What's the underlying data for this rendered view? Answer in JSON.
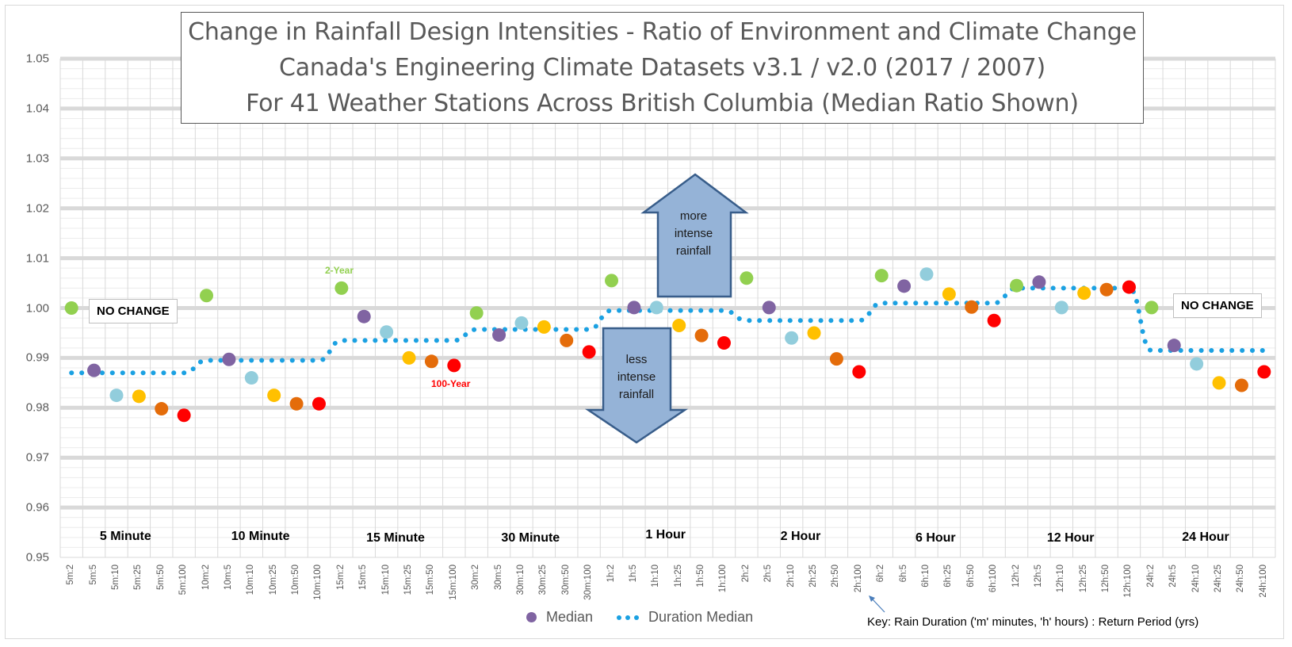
{
  "chart_data": {
    "type": "scatter",
    "title": [
      "Change in Rainfall Design Intensities - Ratio of Environment and Climate Change",
      "Canada's Engineering Climate Datasets v3.1 / v2.0 (2017 / 2007)",
      "For 41 Weather Stations Across British Columbia (Median Ratio Shown)"
    ],
    "xlabel": "",
    "ylabel": "",
    "ylim": [
      0.95,
      1.05
    ],
    "yticks": [
      "1.05",
      "1.04",
      "1.03",
      "1.02",
      "1.01",
      "1.00",
      "0.99",
      "0.98",
      "0.97",
      "0.96",
      "0.95"
    ],
    "ytick_values": [
      1.05,
      1.04,
      1.03,
      1.02,
      1.01,
      1.0,
      0.99,
      0.98,
      0.97,
      0.96,
      0.95
    ],
    "grid": true,
    "return_periods": [
      "2",
      "5",
      "10",
      "25",
      "50",
      "100"
    ],
    "return_period_colors": {
      "2": "#92d050",
      "5": "#8064a2",
      "10": "#92cddc",
      "25": "#ffc000",
      "50": "#e46c0a",
      "100": "#ff0000"
    },
    "durations": [
      {
        "code": "5m",
        "label": "5 Minute",
        "duration_median": 0.987,
        "values": [
          1.0,
          0.9875,
          0.9825,
          0.9823,
          0.9798,
          0.9785
        ]
      },
      {
        "code": "10m",
        "label": "10 Minute",
        "duration_median": 0.9895,
        "values": [
          1.0025,
          0.9897,
          0.986,
          0.9825,
          0.9808,
          0.9808
        ]
      },
      {
        "code": "15m",
        "label": "15 Minute",
        "duration_median": 0.9935,
        "values": [
          1.004,
          0.9983,
          0.9952,
          0.99,
          0.9893,
          0.9885
        ]
      },
      {
        "code": "30m",
        "label": "30 Minute",
        "duration_median": 0.9957,
        "values": [
          0.999,
          0.9946,
          0.997,
          0.9962,
          0.9935,
          0.9912
        ]
      },
      {
        "code": "1h",
        "label": "1 Hour",
        "duration_median": 0.9995,
        "values": [
          1.0055,
          1.0001,
          1.0001,
          0.9965,
          0.9945,
          0.993
        ]
      },
      {
        "code": "2h",
        "label": "2 Hour",
        "duration_median": 0.9975,
        "values": [
          1.006,
          1.0001,
          0.994,
          0.995,
          0.9898,
          0.9872
        ]
      },
      {
        "code": "6h",
        "label": "6 Hour",
        "duration_median": 1.001,
        "values": [
          1.0065,
          1.0044,
          1.0068,
          1.0028,
          1.0002,
          0.9975
        ]
      },
      {
        "code": "12h",
        "label": "12 Hour",
        "duration_median": 1.004,
        "values": [
          1.0045,
          1.0052,
          1.0001,
          1.003,
          1.0037,
          1.0042
        ]
      },
      {
        "code": "24h",
        "label": "24 Hour",
        "duration_median": 0.9915,
        "values": [
          1.0001,
          0.9925,
          0.9888,
          0.985,
          0.9845,
          0.9872
        ]
      }
    ],
    "legend": {
      "placement": "bottom",
      "items": [
        {
          "label": "Median",
          "marker": "circle",
          "color": "#8064a2"
        },
        {
          "label": "Duration Median",
          "marker": "dotted-line",
          "color": "#1ba1e2"
        }
      ]
    },
    "annotations": {
      "no_change_left": "NO CHANGE",
      "no_change_right": "NO CHANGE",
      "two_year": "2-Year",
      "two_year_color": "#92d050",
      "hundred_year": "100-Year",
      "hundred_year_color": "#ff0000",
      "more_intense": [
        "more",
        "intense",
        "rainfall"
      ],
      "less_intense": [
        "less",
        "intense",
        "rainfall"
      ],
      "arrow_fill": "#95b3d7",
      "arrow_stroke": "#385d8a",
      "key": "Key:  Rain Duration ('m' minutes, 'h' hours) : Return Period (yrs)"
    }
  }
}
